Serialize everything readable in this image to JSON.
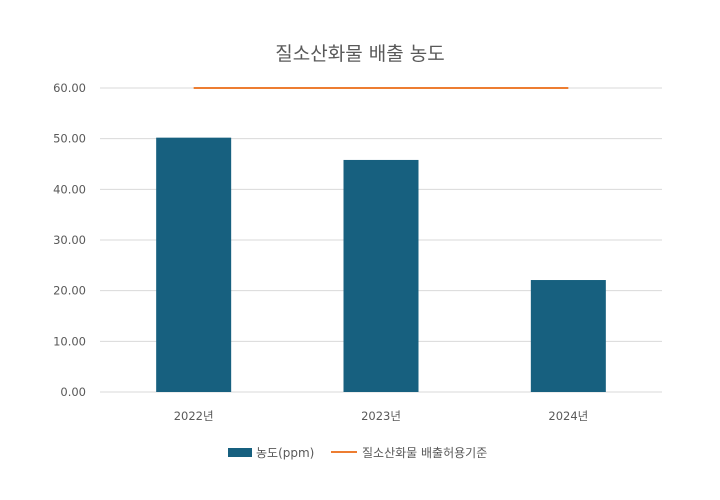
{
  "chart_data": {
    "type": "bar",
    "title": "질소산화물 배출 농도",
    "categories": [
      "2022년",
      "2023년",
      "2024년"
    ],
    "series": [
      {
        "name": "농도(ppm)",
        "type": "bar",
        "values": [
          50.2,
          45.8,
          22.1
        ],
        "color": "#17607f"
      },
      {
        "name": "질소산화물 배출허용기준",
        "type": "line",
        "values": [
          60,
          60,
          60
        ],
        "color": "#ed7d31"
      }
    ],
    "yticks": [
      "0.00",
      "10.00",
      "20.00",
      "30.00",
      "40.00",
      "50.00",
      "60.00"
    ],
    "ylim": [
      0,
      60
    ],
    "grid": true,
    "legend": "bottom"
  }
}
